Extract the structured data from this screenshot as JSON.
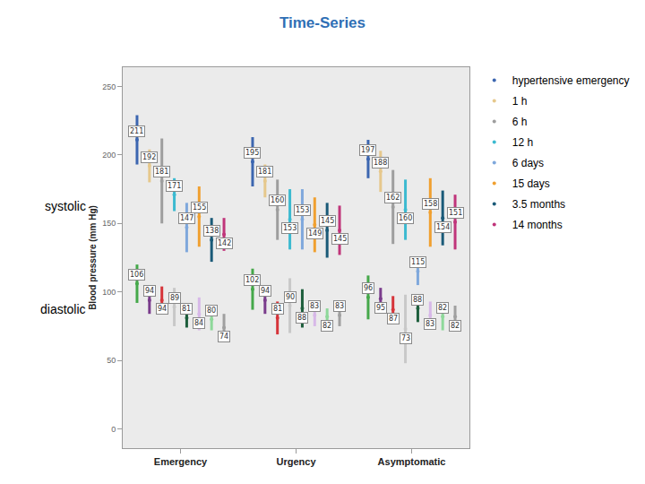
{
  "chart_data": {
    "type": "errorbar",
    "title": "Time-Series",
    "y_label": "Blood pressure (mm Hg)",
    "categories": [
      "Emergency",
      "Urgency",
      "Asymptomatic"
    ],
    "annotations": [
      "systolic",
      "diastolic"
    ],
    "ylim": [
      -14,
      264
    ],
    "yticks": [
      0,
      50,
      100,
      150,
      200,
      250
    ],
    "grid": false,
    "legend": "right",
    "data_labels": true,
    "marker": "circle",
    "series": [
      {
        "name": "hypertensive emergency",
        "systolic": {
          "color": "#3c66b0",
          "values": [
            211,
            195,
            197
          ],
          "error": [
            18,
            18,
            14
          ]
        },
        "diastolic": {
          "color": "#45a84a",
          "values": [
            106,
            102,
            96
          ],
          "error": [
            14,
            15,
            16
          ]
        }
      },
      {
        "name": "1 h",
        "systolic": {
          "color": "#e6c88c",
          "values": [
            192,
            181,
            188
          ],
          "error": [
            12,
            12,
            15
          ]
        },
        "diastolic": {
          "color": "#7a3c8c",
          "values": [
            94,
            94,
            95
          ],
          "error": [
            10,
            10,
            8
          ]
        }
      },
      {
        "name": "6 h",
        "systolic": {
          "color": "#9e9e9e",
          "values": [
            181,
            160,
            162
          ],
          "error": [
            31,
            22,
            27
          ]
        },
        "diastolic": {
          "color": "#d6343a",
          "values": [
            94,
            81,
            87
          ],
          "error": [
            10,
            12,
            10
          ]
        }
      },
      {
        "name": "12 h",
        "systolic": {
          "color": "#3cbad0",
          "values": [
            171,
            153,
            160
          ],
          "error": [
            12,
            22,
            22
          ]
        },
        "diastolic": {
          "color": "#c8c8c8",
          "values": [
            89,
            90,
            73
          ],
          "error": [
            14,
            20,
            25
          ]
        }
      },
      {
        "name": "6 days",
        "systolic": {
          "color": "#7fa8dc",
          "values": [
            147,
            153,
            115
          ],
          "error": [
            18,
            22,
            10
          ]
        },
        "diastolic": {
          "color": "#1d5e3c",
          "values": [
            81,
            88,
            88
          ],
          "error": [
            7,
            14,
            10
          ]
        }
      },
      {
        "name": "15 days",
        "systolic": {
          "color": "#f0a030",
          "values": [
            155,
            149,
            158
          ],
          "error": [
            22,
            20,
            25
          ]
        },
        "diastolic": {
          "color": "#d7b8e8",
          "values": [
            84,
            83,
            83
          ],
          "error": [
            12,
            8,
            10
          ]
        }
      },
      {
        "name": "3.5 months",
        "systolic": {
          "color": "#1a5a78",
          "values": [
            138,
            145,
            154
          ],
          "error": [
            16,
            20,
            20
          ]
        },
        "diastolic": {
          "color": "#8ed89a",
          "values": [
            80,
            82,
            82
          ],
          "error": [
            8,
            6,
            10
          ]
        }
      },
      {
        "name": "14 months",
        "systolic": {
          "color": "#c0357a",
          "values": [
            142,
            145,
            151
          ],
          "error": [
            12,
            18,
            20
          ]
        },
        "diastolic": {
          "color": "#a0a0a0",
          "values": [
            74,
            83,
            82
          ],
          "error": [
            10,
            8,
            8
          ]
        }
      }
    ]
  }
}
